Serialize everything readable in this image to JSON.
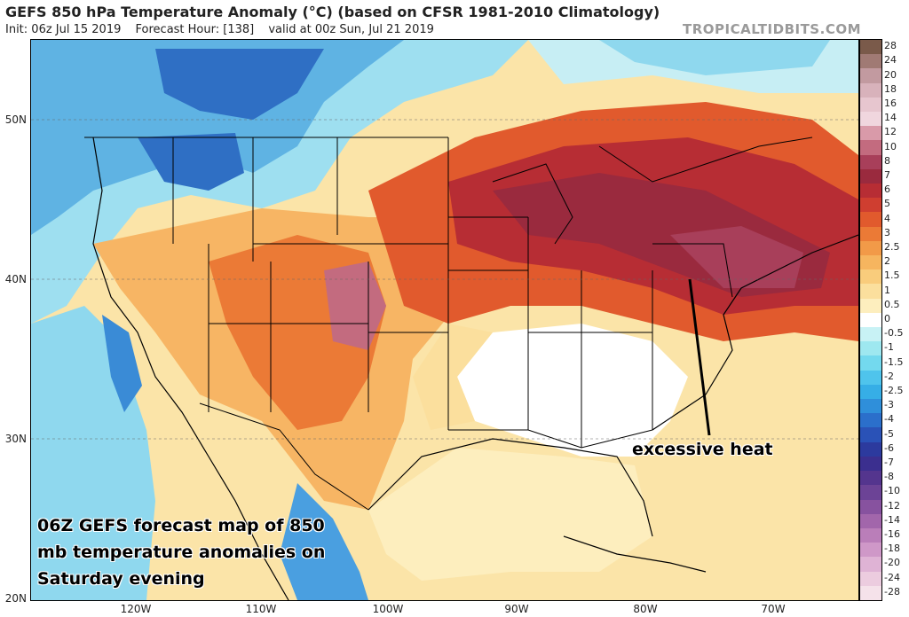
{
  "header": {
    "title": "GEFS 850 hPa Temperature Anomaly (°C) (based on CFSR 1981-2010 Climatology)",
    "init": "Init: 06z Jul 15 2019",
    "forecast_hour": "Forecast Hour: [138]",
    "valid": "valid at 00z Sun, Jul 21 2019",
    "brand": "TROPICALTIDBITS.COM"
  },
  "axes": {
    "lat_labels": [
      "50N",
      "40N",
      "30N",
      "20N"
    ],
    "lon_labels": [
      "120W",
      "110W",
      "100W",
      "90W",
      "80W",
      "70W"
    ]
  },
  "colorbar": {
    "labels": [
      "28",
      "24",
      "20",
      "18",
      "16",
      "14",
      "12",
      "10",
      "8",
      "7",
      "6",
      "5",
      "4",
      "3",
      "2.5",
      "2",
      "1.5",
      "1",
      "0.5",
      "0",
      "-0.5",
      "-1",
      "-1.5",
      "-2",
      "-2.5",
      "-3",
      "-4",
      "-5",
      "-6",
      "-7",
      "-8",
      "-10",
      "-12",
      "-14",
      "-16",
      "-18",
      "-20",
      "-24",
      "-28"
    ],
    "colors": [
      "#7a5a4a",
      "#a07a74",
      "#c29aa0",
      "#d8b2bb",
      "#e7c6cf",
      "#f0d6de",
      "#d99aa9",
      "#c36b7f",
      "#a83f5a",
      "#9a2a3e",
      "#b72d34",
      "#cf3e30",
      "#e15a2d",
      "#eb7a36",
      "#f29a48",
      "#f6b55f",
      "#f9cc7c",
      "#fbdf9d",
      "#fdeebe",
      "#ffffff",
      "#c8f2f5",
      "#9ee8f0",
      "#73d9ee",
      "#4fc4ec",
      "#36aee6",
      "#2f8fda",
      "#2b6fcb",
      "#2a52b7",
      "#2c3a9e",
      "#3b2f8f",
      "#54358e",
      "#6c4396",
      "#87529f",
      "#a266ab",
      "#ba7eb9",
      "#cf98c8",
      "#dfb3d5",
      "#ecccdf",
      "#f5e2ea"
    ]
  },
  "annotations": {
    "heat_label": "excessive heat",
    "caption": "06Z GEFS forecast map of 850 mb temperature anomalies on Saturday evening"
  }
}
